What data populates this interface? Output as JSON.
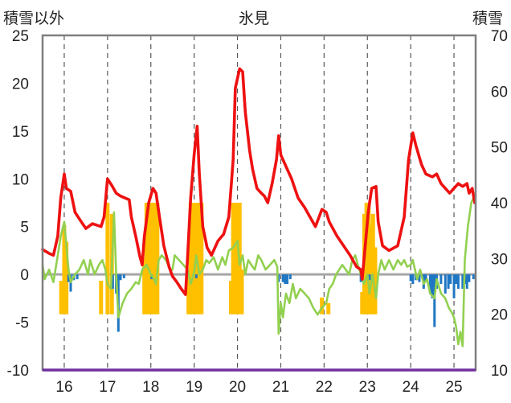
{
  "chart_data": {
    "type": "bar+line",
    "title": "氷見",
    "left_axis_label": "積雪以外",
    "right_axis_label": "積雪",
    "left_axis": {
      "range": [
        -10,
        25
      ],
      "ticks": [
        "-10",
        "-5",
        "0",
        "5",
        "10",
        "15",
        "20",
        "25"
      ]
    },
    "right_axis": {
      "range": [
        10,
        70
      ],
      "ticks": [
        "10",
        "20",
        "30",
        "40",
        "50",
        "60",
        "70"
      ]
    },
    "x_axis": {
      "range": [
        15.5,
        25.5
      ],
      "ticks": [
        "16",
        "17",
        "18",
        "19",
        "20",
        "21",
        "22",
        "23",
        "24",
        "25"
      ]
    },
    "grid": "vertical dashed lines at each year",
    "colors": {
      "red_line": "#ee1111",
      "green_line": "#92d050",
      "orange_bars": "#ffc000",
      "blue_bars": "#1f77c4",
      "zero_line": "#a6a6a6",
      "bottom_line": "#7030a0",
      "frame": "#7f7f7f"
    },
    "series": [
      {
        "color": "red",
        "axis": "left",
        "points": [
          [
            15.5,
            2.6
          ],
          [
            15.65,
            2.2
          ],
          [
            15.75,
            2.0
          ],
          [
            15.85,
            4.0
          ],
          [
            15.92,
            8.0
          ],
          [
            16.0,
            10.5
          ],
          [
            16.05,
            9.0
          ],
          [
            16.15,
            8.7
          ],
          [
            16.25,
            6.5
          ],
          [
            16.35,
            5.8
          ],
          [
            16.5,
            4.8
          ],
          [
            16.65,
            5.3
          ],
          [
            16.85,
            5.0
          ],
          [
            16.92,
            6.0
          ],
          [
            17.0,
            10.0
          ],
          [
            17.1,
            9.3
          ],
          [
            17.2,
            8.5
          ],
          [
            17.3,
            8.2
          ],
          [
            17.5,
            7.8
          ],
          [
            17.55,
            6.0
          ],
          [
            17.65,
            4.0
          ],
          [
            17.75,
            1.8
          ],
          [
            17.8,
            1.0
          ],
          [
            17.85,
            4.0
          ],
          [
            17.95,
            7.5
          ],
          [
            18.05,
            9.0
          ],
          [
            18.12,
            8.5
          ],
          [
            18.2,
            6.0
          ],
          [
            18.3,
            3.0
          ],
          [
            18.42,
            0.8
          ],
          [
            18.5,
            -0.2
          ],
          [
            18.6,
            -0.8
          ],
          [
            18.7,
            -1.5
          ],
          [
            18.8,
            -2.1
          ],
          [
            18.85,
            2.0
          ],
          [
            18.92,
            8.0
          ],
          [
            19.0,
            12.5
          ],
          [
            19.07,
            15.5
          ],
          [
            19.12,
            10.5
          ],
          [
            19.2,
            5.0
          ],
          [
            19.3,
            2.8
          ],
          [
            19.4,
            2.0
          ],
          [
            19.55,
            3.5
          ],
          [
            19.68,
            4.2
          ],
          [
            19.8,
            6.0
          ],
          [
            19.9,
            12.0
          ],
          [
            19.95,
            19.5
          ],
          [
            20.05,
            21.5
          ],
          [
            20.12,
            21.2
          ],
          [
            20.18,
            17.0
          ],
          [
            20.28,
            13.0
          ],
          [
            20.35,
            11.0
          ],
          [
            20.45,
            9.0
          ],
          [
            20.55,
            8.5
          ],
          [
            20.62,
            8.2
          ],
          [
            20.7,
            7.5
          ],
          [
            20.8,
            9.5
          ],
          [
            20.9,
            12.0
          ],
          [
            20.95,
            14.5
          ],
          [
            21.0,
            12.5
          ],
          [
            21.15,
            11.0
          ],
          [
            21.25,
            10.0
          ],
          [
            21.4,
            8.0
          ],
          [
            21.55,
            7.0
          ],
          [
            21.7,
            5.8
          ],
          [
            21.8,
            5.0
          ],
          [
            21.95,
            6.8
          ],
          [
            22.05,
            6.5
          ],
          [
            22.12,
            5.5
          ],
          [
            22.3,
            4.0
          ],
          [
            22.45,
            3.0
          ],
          [
            22.6,
            2.0
          ],
          [
            22.75,
            0.8
          ],
          [
            22.85,
            0.5
          ],
          [
            22.88,
            -0.5
          ],
          [
            22.95,
            3.0
          ],
          [
            23.02,
            6.5
          ],
          [
            23.1,
            9.0
          ],
          [
            23.2,
            9.2
          ],
          [
            23.25,
            5.5
          ],
          [
            23.35,
            3.0
          ],
          [
            23.5,
            2.5
          ],
          [
            23.7,
            3.0
          ],
          [
            23.85,
            6.0
          ],
          [
            23.95,
            12.0
          ],
          [
            24.05,
            14.8
          ],
          [
            24.12,
            13.5
          ],
          [
            24.25,
            11.5
          ],
          [
            24.35,
            10.5
          ],
          [
            24.5,
            10.2
          ],
          [
            24.6,
            10.5
          ],
          [
            24.7,
            9.5
          ],
          [
            24.8,
            9.0
          ],
          [
            24.9,
            8.5
          ],
          [
            25.0,
            9.0
          ],
          [
            25.1,
            9.5
          ],
          [
            25.2,
            9.2
          ],
          [
            25.3,
            9.5
          ],
          [
            25.35,
            8.5
          ],
          [
            25.42,
            9.0
          ],
          [
            25.48,
            7.5
          ]
        ]
      },
      {
        "color": "green",
        "axis": "left",
        "points": [
          [
            15.5,
            1.0
          ],
          [
            15.55,
            -0.5
          ],
          [
            15.65,
            0.5
          ],
          [
            15.75,
            -0.8
          ],
          [
            15.85,
            2.0
          ],
          [
            15.92,
            4.0
          ],
          [
            16.0,
            5.5
          ],
          [
            16.05,
            3.0
          ],
          [
            16.1,
            0.5
          ],
          [
            16.15,
            -0.8
          ],
          [
            16.25,
            0.0
          ],
          [
            16.35,
            0.5
          ],
          [
            16.45,
            1.5
          ],
          [
            16.55,
            0.0
          ],
          [
            16.6,
            1.5
          ],
          [
            16.7,
            0.0
          ],
          [
            16.8,
            1.0
          ],
          [
            16.88,
            1.5
          ],
          [
            16.95,
            0.5
          ],
          [
            17.0,
            -1.0
          ],
          [
            17.08,
            -1.5
          ],
          [
            17.15,
            6.5
          ],
          [
            17.2,
            0.0
          ],
          [
            17.25,
            -4.5
          ],
          [
            17.35,
            -3.0
          ],
          [
            17.45,
            -2.0
          ],
          [
            17.55,
            -1.5
          ],
          [
            17.65,
            -0.8
          ],
          [
            17.72,
            -1.0
          ],
          [
            17.8,
            0.5
          ],
          [
            17.9,
            1.0
          ],
          [
            18.0,
            0.0
          ],
          [
            18.08,
            -0.5
          ],
          [
            18.12,
            -1.0
          ],
          [
            18.18,
            1.5
          ],
          [
            18.25,
            2.0
          ],
          [
            18.35,
            1.5
          ],
          [
            18.45,
            0.5
          ],
          [
            18.5,
            0.5
          ],
          [
            18.55,
            2.0
          ],
          [
            18.65,
            1.5
          ],
          [
            18.75,
            1.0
          ],
          [
            18.85,
            0.5
          ],
          [
            18.92,
            -1.0
          ],
          [
            19.0,
            0.2
          ],
          [
            19.05,
            2.0
          ],
          [
            19.12,
            0.0
          ],
          [
            19.2,
            0.5
          ],
          [
            19.28,
            1.5
          ],
          [
            19.35,
            1.2
          ],
          [
            19.45,
            1.8
          ],
          [
            19.55,
            0.5
          ],
          [
            19.65,
            1.8
          ],
          [
            19.72,
            1.0
          ],
          [
            19.8,
            2.5
          ],
          [
            19.9,
            2.8
          ],
          [
            20.0,
            3.5
          ],
          [
            20.05,
            1.0
          ],
          [
            20.12,
            2.0
          ],
          [
            20.18,
            0.0
          ],
          [
            20.25,
            1.5
          ],
          [
            20.32,
            1.0
          ],
          [
            20.4,
            0.5
          ],
          [
            20.48,
            2.0
          ],
          [
            20.55,
            1.5
          ],
          [
            20.65,
            0.5
          ],
          [
            20.75,
            1.0
          ],
          [
            20.85,
            1.5
          ],
          [
            20.92,
            0.8
          ],
          [
            20.95,
            -6.2
          ],
          [
            21.0,
            -3.0
          ],
          [
            21.05,
            -4.5
          ],
          [
            21.12,
            -2.0
          ],
          [
            21.2,
            -3.0
          ],
          [
            21.28,
            -1.0
          ],
          [
            21.35,
            -2.5
          ],
          [
            21.45,
            -1.5
          ],
          [
            21.55,
            -2.0
          ],
          [
            21.65,
            -2.5
          ],
          [
            21.75,
            -3.5
          ],
          [
            21.85,
            -4.2
          ],
          [
            21.95,
            -3.5
          ],
          [
            22.05,
            -3.0
          ],
          [
            22.12,
            -1.5
          ],
          [
            22.2,
            -1.0
          ],
          [
            22.28,
            0.0
          ],
          [
            22.35,
            0.5
          ],
          [
            22.42,
            1.0
          ],
          [
            22.5,
            0.5
          ],
          [
            22.58,
            0.0
          ],
          [
            22.65,
            1.5
          ],
          [
            22.72,
            2.0
          ],
          [
            22.78,
            1.0
          ],
          [
            22.85,
            0.0
          ],
          [
            22.92,
            -1.0
          ],
          [
            23.0,
            0.0
          ],
          [
            23.05,
            -2.0
          ],
          [
            23.12,
            0.0
          ],
          [
            23.2,
            -2.5
          ],
          [
            23.25,
            0.0
          ],
          [
            23.32,
            1.5
          ],
          [
            23.4,
            0.5
          ],
          [
            23.5,
            1.5
          ],
          [
            23.6,
            0.5
          ],
          [
            23.7,
            1.5
          ],
          [
            23.78,
            1.0
          ],
          [
            23.85,
            1.5
          ],
          [
            23.92,
            0.8
          ],
          [
            24.0,
            1.0
          ],
          [
            24.05,
            1.5
          ],
          [
            24.1,
            0.5
          ],
          [
            24.15,
            -0.5
          ],
          [
            24.22,
            0.5
          ],
          [
            24.3,
            -1.0
          ],
          [
            24.38,
            -0.5
          ],
          [
            24.45,
            -2.0
          ],
          [
            24.55,
            -2.5
          ],
          [
            24.6,
            -0.5
          ],
          [
            24.7,
            -2.0
          ],
          [
            24.8,
            -2.5
          ],
          [
            24.88,
            -3.5
          ],
          [
            24.95,
            -4.0
          ],
          [
            25.0,
            -4.5
          ],
          [
            25.05,
            -5.5
          ],
          [
            25.1,
            -7.3
          ],
          [
            25.15,
            -6.0
          ],
          [
            25.2,
            -7.5
          ],
          [
            25.25,
            1.5
          ],
          [
            25.32,
            5.0
          ],
          [
            25.4,
            7.5
          ],
          [
            25.45,
            8.0
          ],
          [
            25.5,
            8.2
          ]
        ]
      }
    ],
    "bars_orange": {
      "axis": "right",
      "bars": [
        [
          15.93,
          26
        ],
        [
          16.0,
          36
        ],
        [
          16.05,
          33
        ],
        [
          16.85,
          26
        ],
        [
          17.0,
          40
        ],
        [
          17.1,
          38
        ],
        [
          17.85,
          30
        ],
        [
          17.9,
          40
        ],
        [
          17.95,
          40
        ],
        [
          18.0,
          40
        ],
        [
          18.05,
          40
        ],
        [
          18.1,
          40
        ],
        [
          18.15,
          40
        ],
        [
          18.87,
          28
        ],
        [
          18.92,
          40
        ],
        [
          18.97,
          40
        ],
        [
          19.02,
          40
        ],
        [
          19.07,
          40
        ],
        [
          19.12,
          40
        ],
        [
          19.17,
          40
        ],
        [
          19.85,
          26
        ],
        [
          19.9,
          40
        ],
        [
          19.95,
          40
        ],
        [
          20.0,
          40
        ],
        [
          20.05,
          40
        ],
        [
          20.1,
          28
        ],
        [
          21.95,
          23
        ],
        [
          22.1,
          22
        ],
        [
          22.88,
          24
        ],
        [
          22.93,
          38
        ],
        [
          22.98,
          40
        ],
        [
          23.03,
          40
        ],
        [
          23.08,
          36
        ],
        [
          23.13,
          38
        ],
        [
          23.18,
          32
        ]
      ]
    },
    "bars_blue": {
      "axis": "left",
      "bars": [
        [
          16.1,
          -0.8
        ],
        [
          16.15,
          -1.8
        ],
        [
          16.22,
          -0.6
        ],
        [
          16.3,
          -0.5
        ],
        [
          17.12,
          -1.5
        ],
        [
          17.2,
          -2.0
        ],
        [
          17.25,
          -6.0
        ],
        [
          17.3,
          -0.6
        ],
        [
          17.38,
          -0.4
        ],
        [
          18.02,
          -0.5
        ],
        [
          19.05,
          -0.4
        ],
        [
          20.95,
          -0.8
        ],
        [
          21.05,
          -0.8
        ],
        [
          21.1,
          -1.0
        ],
        [
          21.15,
          -1.0
        ],
        [
          21.22,
          -0.5
        ],
        [
          22.85,
          -0.8
        ],
        [
          23.05,
          -0.6
        ],
        [
          23.12,
          -0.5
        ],
        [
          24.0,
          -0.7
        ],
        [
          24.05,
          -1.0
        ],
        [
          24.12,
          -0.6
        ],
        [
          24.2,
          -0.8
        ],
        [
          24.3,
          -1.5
        ],
        [
          24.35,
          -0.8
        ],
        [
          24.45,
          -2.0
        ],
        [
          24.5,
          -2.5
        ],
        [
          24.55,
          -5.5
        ],
        [
          24.6,
          -1.5
        ],
        [
          24.7,
          -1.0
        ],
        [
          24.8,
          -2.0
        ],
        [
          24.87,
          -1.5
        ],
        [
          24.92,
          -1.0
        ],
        [
          25.0,
          -2.5
        ],
        [
          25.05,
          -1.0
        ],
        [
          25.1,
          -1.5
        ],
        [
          25.2,
          -1.5
        ],
        [
          25.25,
          -1.0
        ],
        [
          25.3,
          -1.5
        ],
        [
          25.35,
          -0.8
        ],
        [
          25.45,
          -0.5
        ]
      ]
    }
  }
}
